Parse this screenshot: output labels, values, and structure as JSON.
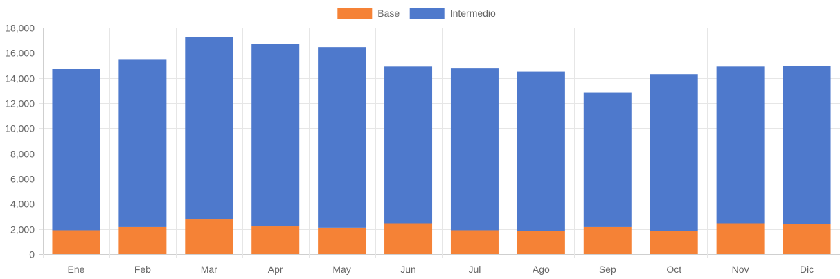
{
  "chart_data": {
    "type": "bar",
    "stacked": true,
    "categories": [
      "Ene",
      "Feb",
      "Mar",
      "Apr",
      "May",
      "Jun",
      "Jul",
      "Ago",
      "Sep",
      "Oct",
      "Nov",
      "Dic"
    ],
    "series": [
      {
        "name": "Base",
        "color": "#f58236",
        "values": [
          1900,
          2150,
          2750,
          2200,
          2100,
          2450,
          1900,
          1850,
          2150,
          1850,
          2450,
          2400
        ]
      },
      {
        "name": "Intermedio",
        "color": "#4e79cc",
        "values": [
          12850,
          13350,
          14500,
          14500,
          14350,
          12450,
          12900,
          12650,
          10700,
          12450,
          12450,
          12550
        ]
      }
    ],
    "ylim": [
      0,
      18000
    ],
    "yticks": [
      "0",
      "2,000",
      "4,000",
      "6,000",
      "8,000",
      "10,000",
      "12,000",
      "14,000",
      "16,000",
      "18,000"
    ],
    "ytick_values": [
      0,
      2000,
      4000,
      6000,
      8000,
      10000,
      12000,
      14000,
      16000,
      18000
    ],
    "grid": true,
    "legend_position": "top-center"
  }
}
